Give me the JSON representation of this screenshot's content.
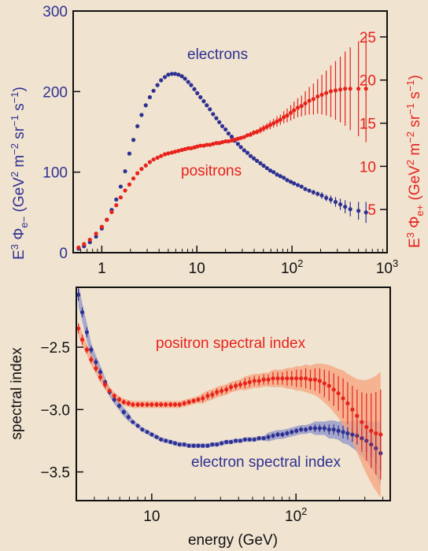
{
  "colors": {
    "background": "#f0e3d0",
    "electron": "#2e3192",
    "positron": "#e8221b",
    "electron_band": "#8e93c9",
    "positron_band": "#f7a37c"
  },
  "chart_data": [
    {
      "type": "scatter",
      "xscale": "log",
      "xlim": [
        0.5,
        1000
      ],
      "ylim": [
        0,
        300
      ],
      "y2lim": [
        0,
        28
      ],
      "xticks": [
        {
          "v": 1,
          "label": "1"
        },
        {
          "v": 10,
          "label": "10"
        },
        {
          "v": 100,
          "label": "10",
          "sup": "2"
        },
        {
          "v": 1000,
          "label": "10",
          "sup": "3"
        }
      ],
      "yticks": [
        0,
        100,
        200,
        300
      ],
      "y2ticks": [
        5,
        10,
        15,
        20,
        25
      ],
      "ylabel": {
        "main": "E",
        "sup3": "3",
        "phi": " Φ",
        "sub": "e−",
        "open": " (GeV",
        "sup2": "2",
        "m": " m",
        "supm2": "−2",
        "sr": " sr",
        "supm1": "−1",
        "s": " s",
        "supm1b": "−1",
        "close": ")"
      },
      "y2label": {
        "main": "E",
        "sup3": "3",
        "phi": " Φ",
        "sub": "e+",
        "open": " (GeV",
        "sup2": "2",
        "m": " m",
        "supm2": "−2",
        "sr": " sr",
        "supm1": "−1",
        "s": " s",
        "supm1b": "−1",
        "close": ")"
      },
      "annotations": {
        "electrons": "electrons",
        "positrons": "positrons"
      },
      "series": [
        {
          "name": "electrons",
          "axis": "left",
          "x": [
            0.57,
            0.65,
            0.75,
            0.87,
            1.0,
            1.13,
            1.27,
            1.42,
            1.58,
            1.76,
            1.95,
            2.15,
            2.37,
            2.62,
            2.9,
            3.2,
            3.5,
            3.85,
            4.2,
            4.6,
            5.0,
            5.45,
            5.9,
            6.4,
            6.95,
            7.5,
            8.1,
            8.7,
            9.4,
            10.1,
            10.9,
            11.8,
            12.7,
            13.7,
            14.8,
            16,
            17.2,
            18.5,
            20,
            21.5,
            23.2,
            25,
            27,
            29,
            31.4,
            34,
            36.7,
            39.7,
            42.9,
            46.5,
            50.3,
            54.5,
            59,
            64,
            69.5,
            75.4,
            82,
            89,
            97,
            105,
            115,
            126,
            138,
            152,
            168,
            186,
            206,
            229,
            256,
            287,
            322,
            362,
            410,
            500,
            600
          ],
          "y": [
            5,
            8,
            13,
            20,
            30,
            41,
            53,
            66,
            82,
            101,
            123,
            140,
            157,
            171,
            183,
            193,
            201,
            208,
            214,
            218,
            221,
            222,
            222,
            221,
            219,
            216,
            212,
            208,
            203,
            198,
            193,
            188,
            183,
            178,
            172,
            167,
            162,
            157,
            153,
            148,
            144,
            139,
            135,
            131,
            127,
            124,
            120,
            117,
            114,
            111,
            108,
            105,
            102,
            100,
            97,
            95,
            93,
            90,
            88,
            86,
            84,
            82,
            79,
            77,
            75,
            73,
            71,
            68,
            66,
            63,
            60,
            57,
            54,
            52,
            50
          ],
          "err": [
            1,
            1,
            1,
            1,
            1,
            1,
            1,
            1,
            1,
            1,
            1,
            1,
            1,
            1,
            1,
            1,
            1,
            1,
            1,
            1,
            1,
            1,
            1,
            1,
            1,
            1,
            1,
            1,
            1,
            1,
            1,
            1,
            1,
            1,
            1,
            1,
            1,
            1,
            1,
            1,
            1,
            1,
            1,
            1,
            1,
            1,
            1,
            1,
            1,
            1,
            1,
            1,
            1,
            1,
            1,
            1,
            1,
            1,
            1,
            1,
            2,
            2,
            2,
            2,
            3,
            3,
            4,
            4,
            5,
            6,
            7,
            8,
            9,
            11,
            13
          ]
        },
        {
          "name": "positrons",
          "axis": "right",
          "x": [
            0.57,
            0.65,
            0.75,
            0.87,
            1.0,
            1.13,
            1.27,
            1.42,
            1.58,
            1.76,
            1.95,
            2.15,
            2.37,
            2.62,
            2.9,
            3.2,
            3.5,
            3.85,
            4.2,
            4.6,
            5.0,
            5.45,
            5.9,
            6.4,
            6.95,
            7.5,
            8.1,
            8.7,
            9.4,
            10.1,
            10.9,
            11.8,
            12.7,
            13.7,
            14.8,
            16,
            17.2,
            18.5,
            20,
            21.5,
            23.2,
            25,
            27,
            29,
            31.4,
            34,
            36.7,
            39.7,
            42.9,
            46.5,
            50.3,
            54.5,
            59,
            64,
            69.5,
            75.4,
            82,
            89,
            97,
            105,
            115,
            126,
            138,
            152,
            168,
            186,
            206,
            229,
            256,
            287,
            322,
            362,
            410,
            500,
            600
          ],
          "y": [
            0.6,
            1.0,
            1.5,
            2.2,
            3.0,
            3.8,
            4.7,
            5.5,
            6.4,
            7.2,
            7.9,
            8.6,
            9.2,
            9.7,
            10.1,
            10.5,
            10.8,
            11.0,
            11.2,
            11.4,
            11.5,
            11.6,
            11.7,
            11.8,
            11.9,
            12.0,
            12.1,
            12.1,
            12.2,
            12.3,
            12.4,
            12.4,
            12.5,
            12.5,
            12.6,
            12.7,
            12.7,
            12.8,
            12.9,
            12.9,
            13.0,
            13.1,
            13.2,
            13.3,
            13.4,
            13.6,
            13.7,
            13.9,
            14.0,
            14.2,
            14.4,
            14.6,
            14.8,
            15.0,
            15.2,
            15.4,
            15.7,
            15.9,
            16.2,
            16.5,
            16.8,
            17.0,
            17.3,
            17.6,
            17.8,
            18.1,
            18.3,
            18.5,
            18.7,
            18.8,
            18.9,
            19.0,
            19.0,
            19.0,
            19.0
          ],
          "err": [
            0.1,
            0.1,
            0.1,
            0.1,
            0.1,
            0.1,
            0.1,
            0.1,
            0.1,
            0.1,
            0.1,
            0.1,
            0.1,
            0.1,
            0.1,
            0.1,
            0.1,
            0.1,
            0.1,
            0.1,
            0.1,
            0.1,
            0.1,
            0.1,
            0.1,
            0.1,
            0.1,
            0.1,
            0.1,
            0.1,
            0.1,
            0.1,
            0.1,
            0.1,
            0.1,
            0.1,
            0.1,
            0.1,
            0.1,
            0.1,
            0.1,
            0.2,
            0.2,
            0.2,
            0.2,
            0.2,
            0.3,
            0.3,
            0.3,
            0.4,
            0.4,
            0.4,
            0.5,
            0.5,
            0.6,
            0.6,
            0.7,
            0.8,
            0.9,
            1.0,
            1.1,
            1.2,
            1.4,
            1.6,
            1.8,
            2.0,
            2.3,
            2.6,
            3.0,
            3.4,
            3.8,
            4.3,
            4.8,
            5.5,
            6.2
          ]
        }
      ]
    },
    {
      "type": "scatter",
      "xscale": "log",
      "xlim": [
        3.0,
        450
      ],
      "ylim": [
        -3.73,
        -2.02
      ],
      "xticks": [
        {
          "v": 10,
          "label": "10"
        },
        {
          "v": 100,
          "label": "10",
          "sup": "2"
        }
      ],
      "yticks": [
        {
          "v": -2.5,
          "label": "−2.5"
        },
        {
          "v": -3.0,
          "label": "−3.0"
        },
        {
          "v": -3.5,
          "label": "−3.5"
        }
      ],
      "xlabel": "energy (GeV)",
      "ylabel": "spectral index",
      "annotations": {
        "positron_index": "positron spectral index",
        "electron_index": "electron spectral index"
      },
      "series": [
        {
          "name": "electron spectral index",
          "x": [
            3.1,
            3.3,
            3.55,
            3.8,
            4.1,
            4.4,
            4.75,
            5.1,
            5.5,
            5.95,
            6.4,
            6.9,
            7.4,
            8.0,
            8.6,
            9.3,
            10.0,
            10.8,
            11.6,
            12.5,
            13.5,
            14.5,
            15.6,
            16.8,
            18.1,
            19.5,
            21,
            22.6,
            24.4,
            26.3,
            28.3,
            30.5,
            32.9,
            35.4,
            38.2,
            41.1,
            44.3,
            47.7,
            51.4,
            55.4,
            59.7,
            64.3,
            69.3,
            74.7,
            80.5,
            86.7,
            93.4,
            100.6,
            108.4,
            116.8,
            125.8,
            135.5,
            146,
            157.3,
            169.5,
            182.6,
            196.7,
            212,
            228,
            246,
            265,
            286,
            308,
            332,
            358,
            386
          ],
          "y": [
            -2.08,
            -2.22,
            -2.38,
            -2.52,
            -2.62,
            -2.7,
            -2.78,
            -2.86,
            -2.92,
            -2.97,
            -3.02,
            -3.06,
            -3.1,
            -3.13,
            -3.16,
            -3.18,
            -3.2,
            -3.22,
            -3.24,
            -3.25,
            -3.26,
            -3.27,
            -3.28,
            -3.28,
            -3.29,
            -3.29,
            -3.29,
            -3.29,
            -3.29,
            -3.28,
            -3.28,
            -3.27,
            -3.26,
            -3.26,
            -3.25,
            -3.25,
            -3.24,
            -3.24,
            -3.24,
            -3.23,
            -3.23,
            -3.22,
            -3.21,
            -3.2,
            -3.2,
            -3.19,
            -3.18,
            -3.17,
            -3.16,
            -3.16,
            -3.15,
            -3.15,
            -3.15,
            -3.15,
            -3.16,
            -3.16,
            -3.17,
            -3.18,
            -3.19,
            -3.2,
            -3.21,
            -3.23,
            -3.25,
            -3.28,
            -3.31,
            -3.35
          ],
          "err": [
            0.05,
            0.04,
            0.04,
            0.03,
            0.03,
            0.03,
            0.02,
            0.02,
            0.02,
            0.02,
            0.02,
            0.02,
            0.01,
            0.01,
            0.01,
            0.01,
            0.01,
            0.01,
            0.01,
            0.01,
            0.01,
            0.01,
            0.01,
            0.01,
            0.01,
            0.01,
            0.01,
            0.01,
            0.01,
            0.01,
            0.01,
            0.01,
            0.01,
            0.01,
            0.01,
            0.01,
            0.01,
            0.01,
            0.01,
            0.01,
            0.01,
            0.02,
            0.02,
            0.02,
            0.02,
            0.02,
            0.02,
            0.02,
            0.02,
            0.02,
            0.02,
            0.03,
            0.03,
            0.03,
            0.04,
            0.04,
            0.04,
            0.05,
            0.05,
            0.06,
            0.07,
            0.08,
            0.09,
            0.1,
            0.12,
            0.14
          ]
        },
        {
          "name": "positron spectral index",
          "x": [
            3.1,
            3.3,
            3.55,
            3.8,
            4.1,
            4.4,
            4.75,
            5.1,
            5.5,
            5.95,
            6.4,
            6.9,
            7.4,
            8.0,
            8.6,
            9.3,
            10.0,
            10.8,
            11.6,
            12.5,
            13.5,
            14.5,
            15.6,
            16.8,
            18.1,
            19.5,
            21,
            22.6,
            24.4,
            26.3,
            28.3,
            30.5,
            32.9,
            35.4,
            38.2,
            41.1,
            44.3,
            47.7,
            51.4,
            55.4,
            59.7,
            64.3,
            69.3,
            74.7,
            80.5,
            86.7,
            93.4,
            100.6,
            108.4,
            116.8,
            125.8,
            135.5,
            146,
            157.3,
            169.5,
            182.6,
            196.7,
            212,
            228,
            246,
            265,
            286,
            308,
            332,
            358,
            386
          ],
          "y": [
            -2.35,
            -2.44,
            -2.52,
            -2.6,
            -2.67,
            -2.74,
            -2.8,
            -2.85,
            -2.89,
            -2.92,
            -2.94,
            -2.95,
            -2.96,
            -2.96,
            -2.96,
            -2.96,
            -2.96,
            -2.96,
            -2.96,
            -2.96,
            -2.96,
            -2.96,
            -2.96,
            -2.95,
            -2.94,
            -2.93,
            -2.92,
            -2.91,
            -2.89,
            -2.88,
            -2.86,
            -2.85,
            -2.84,
            -2.82,
            -2.81,
            -2.8,
            -2.79,
            -2.78,
            -2.77,
            -2.77,
            -2.76,
            -2.76,
            -2.75,
            -2.75,
            -2.75,
            -2.75,
            -2.75,
            -2.75,
            -2.75,
            -2.75,
            -2.76,
            -2.76,
            -2.77,
            -2.79,
            -2.81,
            -2.84,
            -2.87,
            -2.91,
            -2.95,
            -3.0,
            -3.05,
            -3.1,
            -3.14,
            -3.17,
            -3.19,
            -3.2
          ],
          "err": [
            0.04,
            0.04,
            0.03,
            0.03,
            0.03,
            0.03,
            0.03,
            0.02,
            0.02,
            0.02,
            0.02,
            0.02,
            0.02,
            0.02,
            0.02,
            0.02,
            0.02,
            0.02,
            0.02,
            0.02,
            0.02,
            0.02,
            0.02,
            0.02,
            0.02,
            0.02,
            0.02,
            0.03,
            0.03,
            0.03,
            0.03,
            0.03,
            0.03,
            0.03,
            0.03,
            0.03,
            0.04,
            0.04,
            0.04,
            0.04,
            0.04,
            0.04,
            0.05,
            0.05,
            0.05,
            0.06,
            0.06,
            0.07,
            0.07,
            0.08,
            0.08,
            0.09,
            0.1,
            0.11,
            0.12,
            0.13,
            0.14,
            0.16,
            0.17,
            0.19,
            0.21,
            0.24,
            0.27,
            0.3,
            0.33,
            0.36
          ]
        }
      ]
    }
  ]
}
